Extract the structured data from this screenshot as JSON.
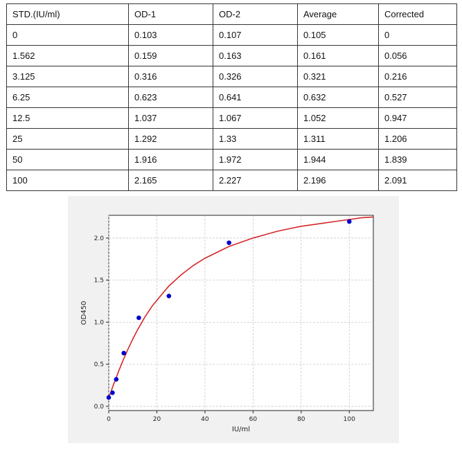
{
  "table": {
    "headers": [
      "STD.(IU/ml)",
      "OD-1",
      "OD-2",
      "Average",
      "Corrected"
    ],
    "rows": [
      [
        "0",
        "0.103",
        "0.107",
        "0.105",
        "0"
      ],
      [
        "1.562",
        "0.159",
        "0.163",
        "0.161",
        "0.056"
      ],
      [
        "3.125",
        "0.316",
        "0.326",
        "0.321",
        "0.216"
      ],
      [
        "6.25",
        "0.623",
        "0.641",
        "0.632",
        "0.527"
      ],
      [
        "12.5",
        "1.037",
        "1.067",
        "1.052",
        "0.947"
      ],
      [
        "25",
        "1.292",
        "1.33",
        "1.311",
        "1.206"
      ],
      [
        "50",
        "1.916",
        "1.972",
        "1.944",
        "1.839"
      ],
      [
        "100",
        "2.165",
        "2.227",
        "2.196",
        "2.091"
      ]
    ]
  },
  "chart_data": {
    "type": "scatter",
    "title": "",
    "xlabel": "IU/ml",
    "ylabel": "OD450",
    "xlim": [
      0,
      110
    ],
    "ylim": [
      -0.05,
      2.27
    ],
    "xticks": [
      0,
      20,
      40,
      60,
      80,
      100
    ],
    "yticks": [
      0.0,
      0.5,
      1.0,
      1.5,
      2.0
    ],
    "grid": true,
    "series": [
      {
        "kind": "points",
        "color": "#0000cc",
        "x": [
          0,
          1.562,
          3.125,
          6.25,
          12.5,
          25,
          50,
          100
        ],
        "y": [
          0.105,
          0.161,
          0.321,
          0.632,
          1.052,
          1.311,
          1.944,
          2.196
        ]
      },
      {
        "kind": "fitted-curve",
        "color": "#d62728",
        "x": [
          0,
          1,
          2,
          3,
          4,
          5,
          6,
          8,
          10,
          12,
          15,
          18,
          20,
          25,
          30,
          35,
          40,
          45,
          50,
          55,
          60,
          65,
          70,
          75,
          80,
          85,
          90,
          95,
          100,
          105,
          110
        ],
        "y": [
          0.1,
          0.18,
          0.26,
          0.33,
          0.41,
          0.48,
          0.55,
          0.68,
          0.8,
          0.91,
          1.06,
          1.19,
          1.26,
          1.43,
          1.56,
          1.67,
          1.76,
          1.83,
          1.9,
          1.95,
          2.0,
          2.04,
          2.08,
          2.11,
          2.14,
          2.16,
          2.18,
          2.2,
          2.22,
          2.24,
          2.25
        ]
      }
    ]
  }
}
